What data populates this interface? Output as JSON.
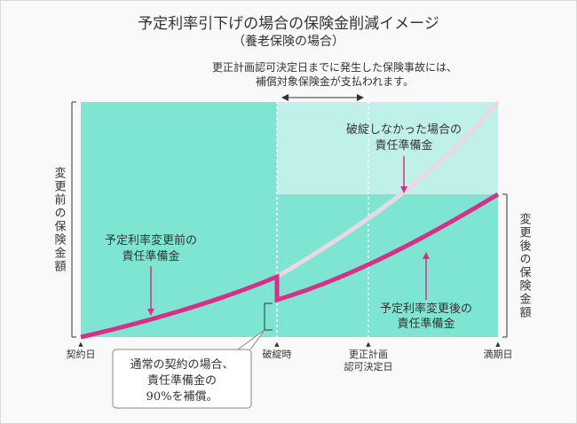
{
  "title": "予定利率引下げの場合の保険金削減イメージ",
  "subtitle": "（養老保険の場合）",
  "top_note": [
    "更正計画認可決定日までに発生した保険事故には、",
    "補償対象保険金が支払われます。"
  ],
  "left_axis_label": "変更前の保険金額",
  "right_axis_label": "変更後の保険金額",
  "labels": {
    "no_bankruptcy_reserve": [
      "破綻しなかった場合の",
      "責任準備金"
    ],
    "before_change_reserve": [
      "予定利率変更前の",
      "責任準備金"
    ],
    "after_change_reserve": [
      "予定利率変更後の",
      "責任準備金"
    ]
  },
  "callout": [
    "通常の契約の場合、",
    "責任準備金の",
    "90%を補償。"
  ],
  "x_ticks": {
    "start": "契約日",
    "bankruptcy": "破綻時",
    "approval": [
      "更正計画",
      "認可決定日"
    ],
    "maturity": "満期日"
  },
  "colors": {
    "area_full": "#7fe5d3",
    "area_light": "#c0f1e8",
    "curve_main": "#d6308a",
    "curve_hypothetical": "#ead9e3",
    "text": "#333333"
  }
}
